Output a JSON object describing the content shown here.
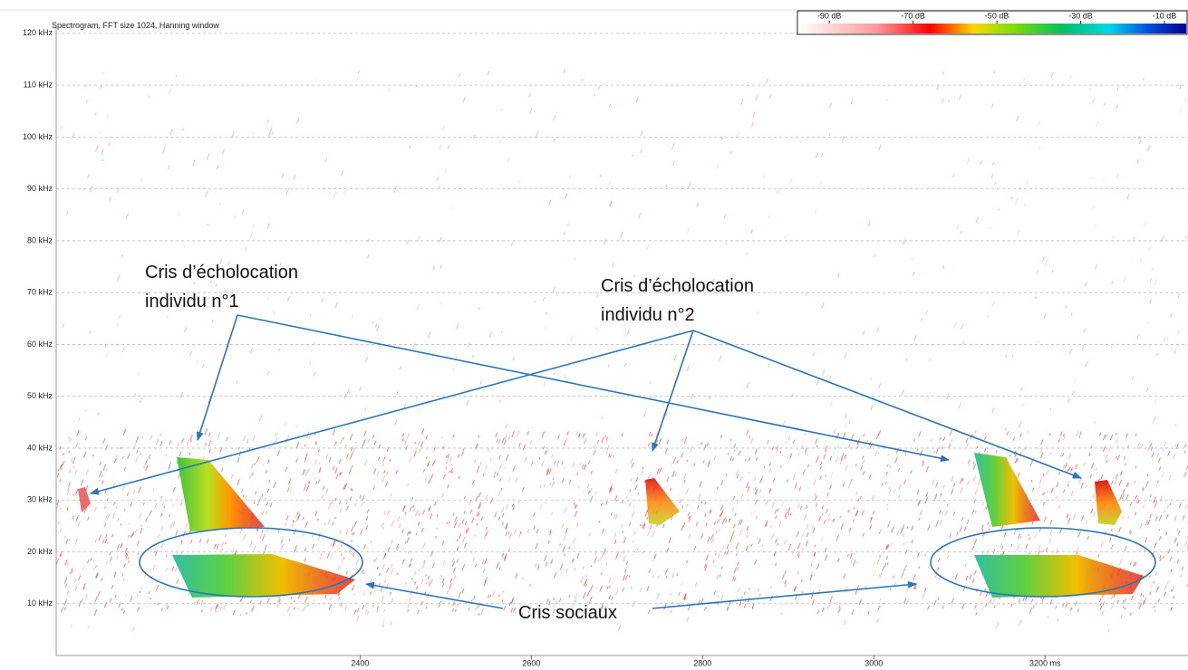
{
  "chart_data": {
    "type": "spectrogram",
    "title": "Spectrogram, FFT size 1024, Hanning window",
    "xlim": [
      2045,
      3367
    ],
    "xticks": [
      2400,
      2600,
      2800,
      3000,
      {
        "value": 3200,
        "label": "3200 ms"
      }
    ],
    "ylim": [
      0,
      121.2
    ],
    "yticks": [
      {
        "value": 120,
        "label": "120 kHz"
      },
      {
        "value": 110,
        "label": "110 kHz"
      },
      {
        "value": 100,
        "label": "100 kHz"
      },
      {
        "value": 90,
        "label": "90 kHz"
      },
      {
        "value": 80,
        "label": "80 kHz"
      },
      {
        "value": 70,
        "label": "70 kHz"
      },
      {
        "value": 60,
        "label": "60 kHz"
      },
      {
        "value": 50,
        "label": "50 kHz"
      },
      {
        "value": 40,
        "label": "40 kHz"
      },
      {
        "value": 30,
        "label": "30 kHz"
      },
      {
        "value": 20,
        "label": "20 kHz"
      },
      {
        "value": 10,
        "label": "10 kHz"
      }
    ],
    "grid": true,
    "colorbar": {
      "lim": [
        -97.6,
        -4.6
      ],
      "ticks": [
        {
          "value": -90,
          "label": "-90 dB"
        },
        {
          "value": -70,
          "label": "-70 dB"
        },
        {
          "value": -50,
          "label": "-50 dB"
        },
        {
          "value": -30,
          "label": "-30 dB"
        },
        {
          "value": -10,
          "label": "-10 dB"
        }
      ]
    },
    "annotations": [
      [
        "Cris d’écholocation",
        "individu n°1"
      ],
      [
        "Cris d’écholocation",
        "individu n°2"
      ],
      [
        "Cris sociaux"
      ]
    ]
  }
}
